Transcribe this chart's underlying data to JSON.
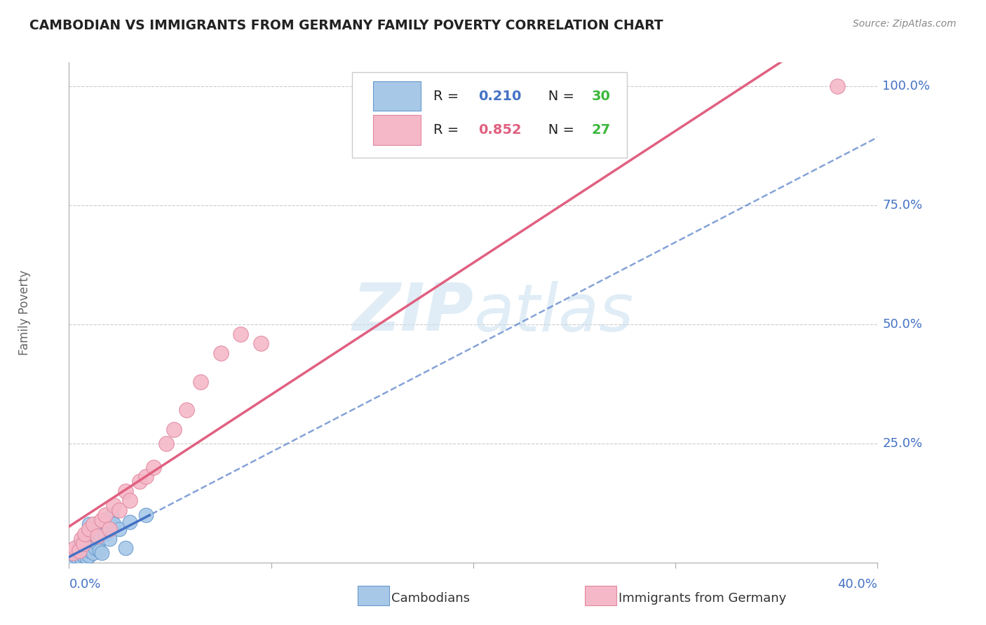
{
  "title": "CAMBODIAN VS IMMIGRANTS FROM GERMANY FAMILY POVERTY CORRELATION CHART",
  "source": "Source: ZipAtlas.com",
  "ylabel": "Family Poverty",
  "xmin": 0.0,
  "xmax": 0.4,
  "ymin": 0.0,
  "ymax": 1.05,
  "watermark_zip": "ZIP",
  "watermark_atlas": "atlas",
  "cambodian_color": "#a8c8e8",
  "cambodian_edge": "#6699cc",
  "germany_color": "#f5b8c8",
  "germany_edge": "#e088a0",
  "cambodian_R": "0.210",
  "cambodian_N": "30",
  "germany_R": "0.852",
  "germany_N": "27",
  "blue_color": "#4472c4",
  "green_color": "#3db83d",
  "pink_line_color": "#e06080",
  "blue_line_color": "#4472c4",
  "cambodian_scatter_x": [
    0.002,
    0.003,
    0.004,
    0.005,
    0.005,
    0.006,
    0.006,
    0.007,
    0.008,
    0.008,
    0.009,
    0.009,
    0.01,
    0.01,
    0.01,
    0.011,
    0.012,
    0.013,
    0.014,
    0.015,
    0.015,
    0.016,
    0.018,
    0.02,
    0.021,
    0.022,
    0.025,
    0.028,
    0.03,
    0.038
  ],
  "cambodian_scatter_y": [
    0.01,
    0.015,
    0.02,
    0.025,
    0.035,
    0.01,
    0.04,
    0.015,
    0.02,
    0.05,
    0.01,
    0.06,
    0.015,
    0.025,
    0.08,
    0.03,
    0.02,
    0.03,
    0.04,
    0.025,
    0.06,
    0.02,
    0.06,
    0.05,
    0.1,
    0.08,
    0.07,
    0.03,
    0.085,
    0.1
  ],
  "germany_scatter_x": [
    0.002,
    0.003,
    0.005,
    0.006,
    0.007,
    0.008,
    0.01,
    0.012,
    0.014,
    0.016,
    0.018,
    0.02,
    0.022,
    0.025,
    0.028,
    0.03,
    0.035,
    0.038,
    0.042,
    0.048,
    0.052,
    0.058,
    0.065,
    0.075,
    0.085,
    0.095,
    0.38
  ],
  "germany_scatter_y": [
    0.02,
    0.03,
    0.025,
    0.05,
    0.04,
    0.06,
    0.07,
    0.08,
    0.055,
    0.09,
    0.1,
    0.07,
    0.12,
    0.11,
    0.15,
    0.13,
    0.17,
    0.18,
    0.2,
    0.25,
    0.28,
    0.32,
    0.38,
    0.44,
    0.48,
    0.46,
    1.0
  ],
  "background_color": "#ffffff",
  "grid_color": "#cccccc",
  "spine_color": "#aaaaaa"
}
